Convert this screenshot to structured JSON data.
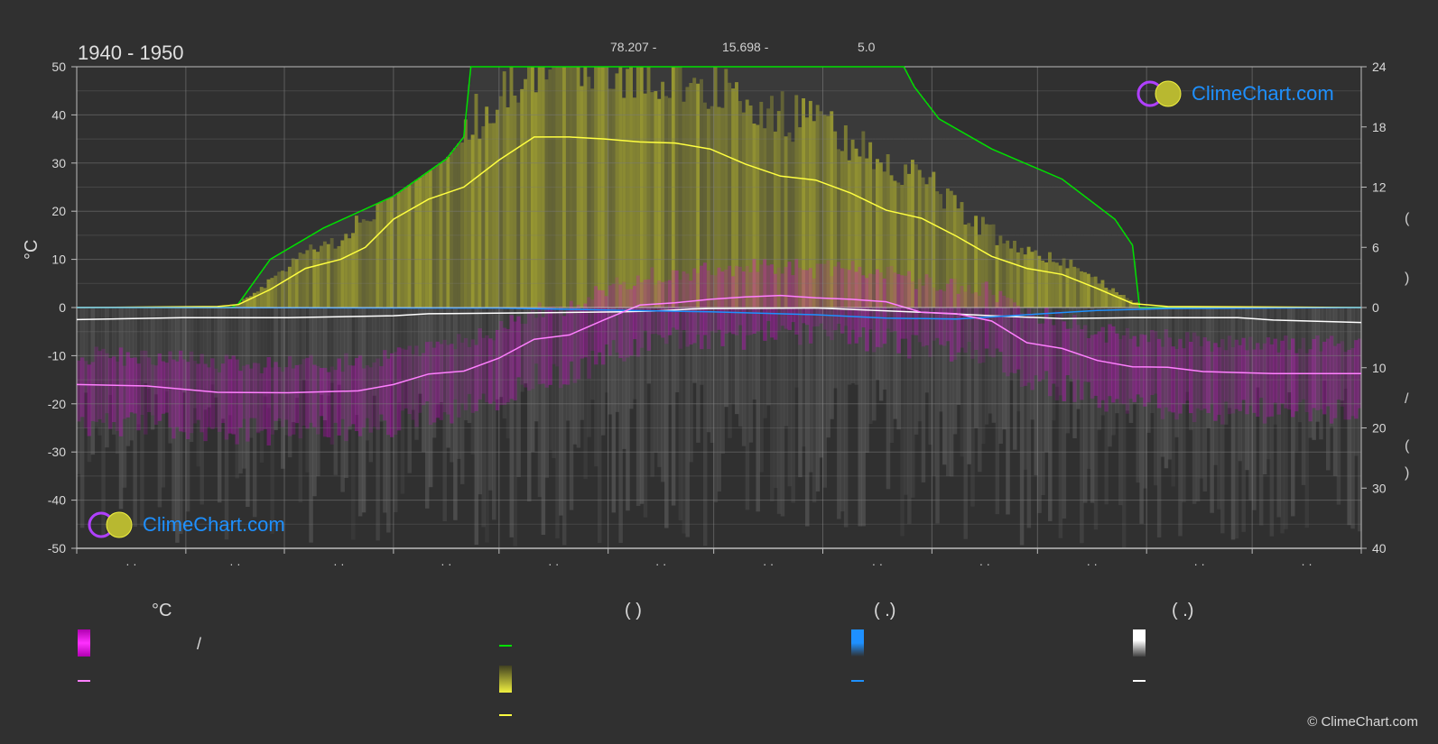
{
  "period_label": "1940 - 1950",
  "stats": [
    "78.207 -",
    "15.698 -",
    "5.0"
  ],
  "left_axis_unit": "°C",
  "right_axis_glyphs": [
    "(",
    ")",
    "/",
    "(",
    ")"
  ],
  "month_labels": [
    "· ·",
    "· ·",
    "· ·",
    "· ·",
    "· ·",
    "· ·",
    "· ·",
    "· ·",
    "· ·",
    "· ·",
    "· ·",
    "· ·"
  ],
  "brand": {
    "name": "ClimeChart.com",
    "copyright": "© ClimeChart.com"
  },
  "legend": {
    "col1_head": "°C",
    "col2_head": "(          )",
    "col3_head": "(   .)",
    "col4_head": "(   .)",
    "col1_slash": "/"
  },
  "colors": {
    "background": "#303030",
    "temperature_band": "#e000e0",
    "temperature_mean": "#ff7fff",
    "daylight": "#00e000",
    "sunshine_band": "#d4d42c",
    "sunshine_mean": "#ffff40",
    "rain": "#1e90ff",
    "snow": "#ffffff",
    "brand": "#1e90ff"
  },
  "chart_data": {
    "type": "line",
    "x_range": [
      0,
      365
    ],
    "month_starts": [
      0,
      31,
      59,
      90,
      120,
      151,
      181,
      212,
      243,
      273,
      304,
      334,
      365
    ],
    "left_axis": {
      "label": "°C",
      "ylim": [
        -50,
        50
      ],
      "ticks": [
        50,
        40,
        30,
        20,
        10,
        0,
        -10,
        -20,
        -30,
        -40,
        -50
      ]
    },
    "right_axis_top": {
      "ylim": [
        0,
        24
      ],
      "ticks": [
        24,
        18,
        12,
        6,
        0
      ]
    },
    "right_axis_bottom": {
      "ylim": [
        0,
        40
      ],
      "ticks": [
        0,
        10,
        20,
        30,
        40
      ]
    },
    "grid": true,
    "series": [
      {
        "key": "daylight",
        "points": [
          [
            0,
            0
          ],
          [
            44,
            0
          ],
          [
            46,
            0.4
          ],
          [
            55,
            4.8
          ],
          [
            70,
            7.9
          ],
          [
            90,
            11.1
          ],
          [
            105,
            14.8
          ],
          [
            110,
            17.0
          ],
          [
            112,
            24
          ],
          [
            235,
            24
          ],
          [
            238,
            22.0
          ],
          [
            245,
            18.8
          ],
          [
            260,
            15.8
          ],
          [
            280,
            12.8
          ],
          [
            295,
            8.8
          ],
          [
            300,
            6.2
          ],
          [
            302,
            0
          ],
          [
            365,
            0
          ]
        ]
      },
      {
        "key": "sunshine_mean",
        "points": [
          [
            0,
            0
          ],
          [
            40,
            0.1
          ],
          [
            46,
            0.3
          ],
          [
            55,
            1.8
          ],
          [
            65,
            3.9
          ],
          [
            75,
            4.8
          ],
          [
            82,
            6.0
          ],
          [
            90,
            8.8
          ],
          [
            100,
            10.8
          ],
          [
            110,
            12.0
          ],
          [
            120,
            14.7
          ],
          [
            130,
            17.0
          ],
          [
            140,
            17.0
          ],
          [
            150,
            16.8
          ],
          [
            160,
            16.5
          ],
          [
            170,
            16.4
          ],
          [
            180,
            15.8
          ],
          [
            190,
            14.3
          ],
          [
            200,
            13.1
          ],
          [
            210,
            12.7
          ],
          [
            220,
            11.4
          ],
          [
            230,
            9.7
          ],
          [
            240,
            8.9
          ],
          [
            250,
            7.1
          ],
          [
            260,
            5.1
          ],
          [
            270,
            3.9
          ],
          [
            280,
            3.3
          ],
          [
            290,
            1.9
          ],
          [
            300,
            0.4
          ],
          [
            310,
            0.1
          ],
          [
            365,
            0
          ]
        ]
      },
      {
        "key": "temperature_mean",
        "points": [
          [
            0,
            -16.0
          ],
          [
            20,
            -16.3
          ],
          [
            40,
            -17.6
          ],
          [
            60,
            -17.7
          ],
          [
            80,
            -17.3
          ],
          [
            90,
            -16.0
          ],
          [
            100,
            -13.8
          ],
          [
            110,
            -13.2
          ],
          [
            120,
            -10.5
          ],
          [
            130,
            -6.6
          ],
          [
            140,
            -5.7
          ],
          [
            150,
            -2.5
          ],
          [
            160,
            0.5
          ],
          [
            170,
            1.0
          ],
          [
            180,
            1.7
          ],
          [
            190,
            2.2
          ],
          [
            200,
            2.5
          ],
          [
            210,
            2.0
          ],
          [
            220,
            1.7
          ],
          [
            230,
            1.2
          ],
          [
            240,
            -1.0
          ],
          [
            250,
            -1.3
          ],
          [
            260,
            -2.8
          ],
          [
            270,
            -7.3
          ],
          [
            280,
            -8.5
          ],
          [
            290,
            -11.0
          ],
          [
            300,
            -12.3
          ],
          [
            310,
            -12.4
          ],
          [
            320,
            -13.3
          ],
          [
            340,
            -13.7
          ],
          [
            365,
            -13.7
          ]
        ]
      },
      {
        "key": "rain",
        "points": [
          [
            0,
            0
          ],
          [
            120,
            -0.1
          ],
          [
            150,
            -0.5
          ],
          [
            180,
            -0.9
          ],
          [
            210,
            -1.5
          ],
          [
            230,
            -2.2
          ],
          [
            250,
            -2.4
          ],
          [
            270,
            -1.5
          ],
          [
            290,
            -0.6
          ],
          [
            310,
            -0.2
          ],
          [
            365,
            0
          ]
        ]
      },
      {
        "key": "snow",
        "points": [
          [
            0,
            -2.5
          ],
          [
            30,
            -2.1
          ],
          [
            60,
            -2.1
          ],
          [
            90,
            -1.7
          ],
          [
            100,
            -1.3
          ],
          [
            130,
            -1.1
          ],
          [
            155,
            -0.9
          ],
          [
            165,
            -0.7
          ],
          [
            175,
            -0.3
          ],
          [
            180,
            -0.2
          ],
          [
            210,
            -0.1
          ],
          [
            240,
            -1.0
          ],
          [
            260,
            -1.7
          ],
          [
            280,
            -2.3
          ],
          [
            300,
            -2.1
          ],
          [
            330,
            -2.1
          ],
          [
            340,
            -2.6
          ],
          [
            365,
            -3.1
          ]
        ]
      }
    ]
  }
}
